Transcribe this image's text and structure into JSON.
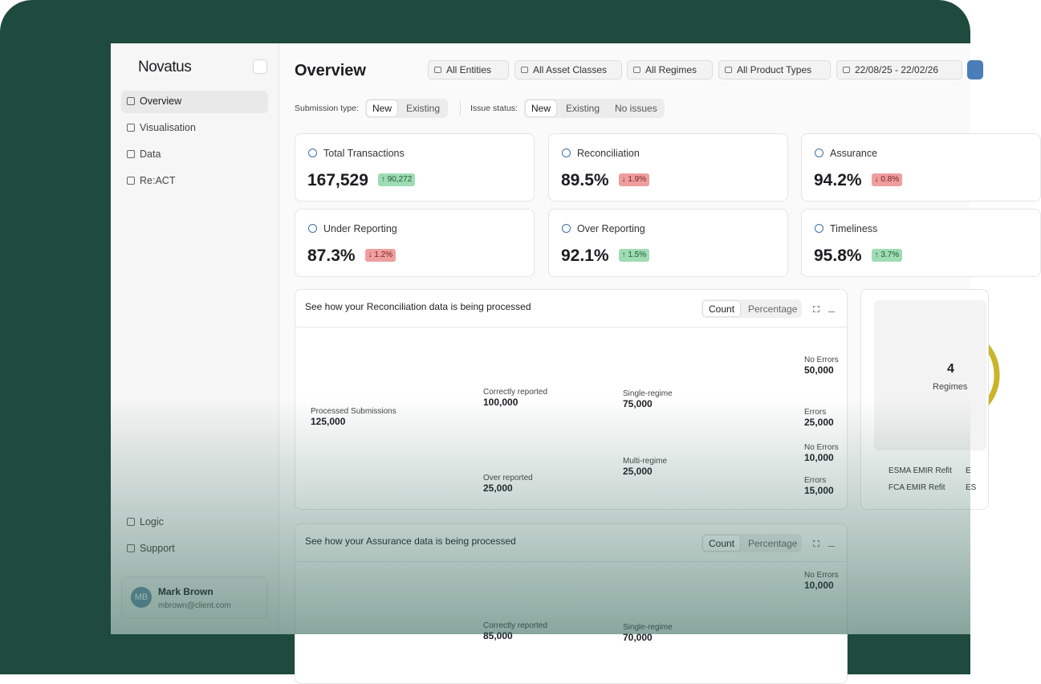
{
  "sidebar": {
    "brand": "Novatus",
    "nav": [
      "Overview",
      "Visualisation",
      "Data",
      "Re:ACT"
    ],
    "footer_nav": [
      "Logic",
      "Support"
    ],
    "user": {
      "initials": "MB",
      "name": "Mark Brown",
      "email": "mbrown@client.com"
    }
  },
  "header": {
    "title": "Overview",
    "filters": [
      "All Entities",
      "All Asset Classes",
      "All Regimes",
      "All Product Types",
      "22/08/25 - 22/02/26"
    ]
  },
  "toggles": [
    {
      "label": "Submission type:",
      "options": [
        "New",
        "Existing"
      ]
    },
    {
      "label": "Issue status:",
      "options": [
        "New",
        "Existing",
        "No issues"
      ]
    }
  ],
  "kpis": [
    {
      "title": "Total Transactions",
      "value": "167,529",
      "delta": "↑ 90,272"
    },
    {
      "title": "Reconciliation",
      "value": "89.5%",
      "delta": "↓ 1.9%"
    },
    {
      "title": "Assurance",
      "value": "94.2%",
      "delta": "↓ 0.8%"
    },
    {
      "title": "Under Reporting",
      "value": "87.3%",
      "delta": "↓ 1.2%"
    },
    {
      "title": "Over Reporting",
      "value": "92.1%",
      "delta": "↑ 1.5%"
    },
    {
      "title": "Timeliness",
      "value": "95.8%",
      "delta": "↑ 3.7%"
    }
  ],
  "panels": [
    {
      "title": "See how your Reconciliation data is being processed",
      "modes": [
        "Count",
        "Percentage"
      ],
      "nodes": [
        {
          "label": "Processed Submissions",
          "value": "125,000"
        },
        {
          "label": "Correctly reported",
          "value": "100,000"
        },
        {
          "label": "Over reported",
          "value": "25,000"
        },
        {
          "label": "Single-regime",
          "value": "75,000"
        },
        {
          "label": "Multi-regime",
          "value": "25,000"
        },
        {
          "label": "No Errors",
          "value": "50,000"
        },
        {
          "label": "Errors",
          "value": "25,000"
        },
        {
          "label": "No Errors",
          "value": "10,000"
        },
        {
          "label": "Errors",
          "value": "15,000"
        }
      ]
    },
    {
      "title": "See how your Assurance data is being processed",
      "modes": [
        "Count",
        "Percentage"
      ],
      "nodes": [
        {
          "label": "No Errors",
          "value": "10,000"
        },
        {
          "label": "Correctly reported",
          "value": "85,000"
        },
        {
          "label": "Single-regime",
          "value": "70,000"
        }
      ]
    }
  ],
  "regimes": {
    "count": "4",
    "label": "Regimes",
    "legend": [
      "ESMA EMIR Refit",
      "E",
      "FCA EMIR Refit",
      "ES"
    ]
  }
}
